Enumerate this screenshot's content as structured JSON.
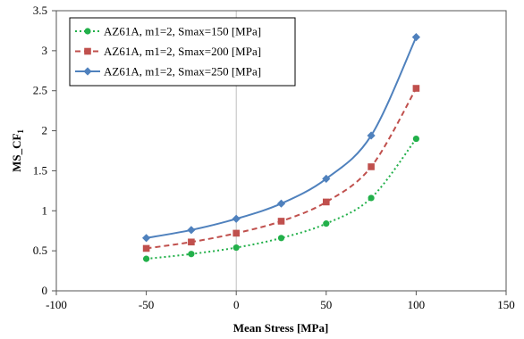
{
  "chart_data": {
    "type": "line",
    "xlabel": "Mean Stress [MPa]",
    "ylabel": "MS_CF",
    "ylabel_subscript": "1",
    "xlim": [
      -100,
      150
    ],
    "ylim": [
      0,
      3.5
    ],
    "xticks": [
      -100,
      -50,
      0,
      50,
      100,
      150
    ],
    "yticks": [
      0,
      0.5,
      1,
      1.5,
      2,
      2.5,
      3,
      3.5
    ],
    "grid": false,
    "zero_line": true,
    "legend_position": "top-left",
    "x": [
      -50,
      -25,
      0,
      25,
      50,
      75,
      100
    ],
    "series": [
      {
        "name": "AZ61A, m1=2, Smax=150 [MPa]",
        "color": "#22b04a",
        "line_style": "dotted",
        "marker": "circle",
        "values": [
          0.4,
          0.46,
          0.54,
          0.66,
          0.84,
          1.16,
          1.9
        ]
      },
      {
        "name": "AZ61A, m1=2, Smax=200 [MPa]",
        "color": "#c0504d",
        "line_style": "dashed",
        "marker": "square",
        "values": [
          0.53,
          0.61,
          0.72,
          0.87,
          1.11,
          1.55,
          2.53
        ]
      },
      {
        "name": "AZ61A, m1=2, Smax=250 [MPa]",
        "color": "#4f81bd",
        "line_style": "solid",
        "marker": "diamond",
        "values": [
          0.66,
          0.76,
          0.9,
          1.09,
          1.4,
          1.94,
          3.17
        ]
      }
    ]
  }
}
